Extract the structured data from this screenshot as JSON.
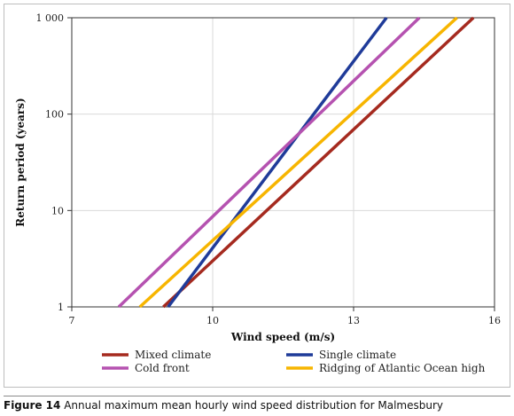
{
  "chart_data": {
    "type": "line",
    "xlabel": "Wind speed (m/s)",
    "ylabel": "Return period (years)",
    "xlim": [
      7,
      16
    ],
    "ylim": [
      1,
      1000
    ],
    "yscale": "log",
    "x_ticks": [
      "7",
      "10",
      "13",
      "16"
    ],
    "y_ticks": [
      "1",
      "10",
      "100",
      "1 000"
    ],
    "grid": true,
    "legend_position": "bottom",
    "series": [
      {
        "name": "Mixed climate",
        "color": "#a52a1f",
        "x": [
          8.95,
          15.55
        ],
        "y": [
          1,
          1000
        ]
      },
      {
        "name": "Single climate",
        "color": "#1f3b99",
        "x": [
          9.05,
          13.7
        ],
        "y": [
          1,
          1000
        ]
      },
      {
        "name": "Cold front",
        "color": "#b552b0",
        "x": [
          8.0,
          14.4
        ],
        "y": [
          1,
          1000
        ]
      },
      {
        "name": "Ridging of Atlantic Ocean high",
        "color": "#f7b500",
        "x": [
          8.45,
          15.2
        ],
        "y": [
          1,
          1000
        ]
      }
    ]
  },
  "caption": {
    "number": "Figure 14",
    "text": " Annual maximum mean hourly wind speed distribution for Malmesbury"
  }
}
